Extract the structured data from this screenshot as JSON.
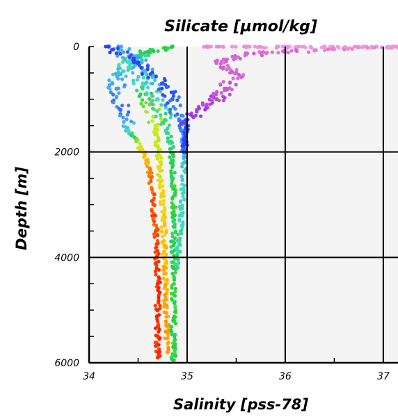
{
  "chart_data": {
    "type": "scatter",
    "title": "Silicate [µmol/kg]",
    "xlabel": "Salinity [pss-78]",
    "ylabel": "Depth [m]",
    "xlim": [
      34,
      37.15
    ],
    "ylim": [
      6000,
      0
    ],
    "x_ticks": [
      "34",
      "35",
      "36",
      "37"
    ],
    "y_ticks": [
      "0",
      "2000",
      "4000",
      "6000"
    ],
    "grid": true,
    "color_variable": "Silicate",
    "color_ramp": [
      "#ff1a00",
      "#ff8000",
      "#ffd000",
      "#b8f020",
      "#20d040",
      "#40e0c0",
      "#40a0ff",
      "#2040ff",
      "#b040e0",
      "#e070d0",
      "#f0a0e0"
    ],
    "series": [
      {
        "depth": [
          0,
          100,
          200,
          300,
          500,
          800,
          1200,
          1600,
          2000,
          2400,
          3000,
          3500,
          4000,
          4500,
          5000,
          5500,
          5900
        ],
        "salinity": [
          34.85,
          34.6,
          34.5,
          34.4,
          34.3,
          34.28,
          34.32,
          34.4,
          34.55,
          34.62,
          34.66,
          34.68,
          34.69,
          34.7,
          34.7,
          34.7,
          34.7
        ],
        "silicate_level": [
          0.4,
          0.4,
          0.45,
          0.5,
          0.55,
          0.6,
          0.65,
          0.5,
          0.2,
          0.1,
          0.05,
          0.05,
          0.03,
          0.02,
          0.02,
          0.02,
          0.02
        ]
      },
      {
        "depth": [
          0,
          300,
          700,
          1100,
          1500,
          1900,
          2300,
          2800,
          3300,
          3800,
          4300,
          4800,
          5300,
          5800
        ],
        "salinity": [
          34.3,
          34.45,
          34.55,
          34.62,
          34.68,
          34.7,
          34.72,
          34.74,
          34.76,
          34.77,
          34.78,
          34.78,
          34.79,
          34.8
        ],
        "silicate_level": [
          0.6,
          0.55,
          0.5,
          0.35,
          0.3,
          0.28,
          0.25,
          0.22,
          0.2,
          0.18,
          0.16,
          0.15,
          0.14,
          0.14
        ]
      },
      {
        "depth": [
          200,
          600,
          1000,
          1400,
          1800,
          2200,
          2700,
          3200,
          3700,
          4200,
          4700,
          5200,
          5700,
          5950
        ],
        "salinity": [
          34.5,
          34.6,
          34.7,
          34.78,
          34.83,
          34.85,
          34.86,
          34.86,
          34.86,
          34.86,
          34.86,
          34.86,
          34.86,
          34.86
        ],
        "silicate_level": [
          0.6,
          0.55,
          0.5,
          0.45,
          0.45,
          0.42,
          0.4,
          0.4,
          0.42,
          0.4,
          0.38,
          0.4,
          0.4,
          0.4
        ]
      },
      {
        "depth": [
          0,
          300,
          700,
          1000,
          1400,
          1800,
          2200,
          2700,
          3200,
          3700,
          4200
        ],
        "salinity": [
          34.2,
          34.5,
          34.75,
          34.85,
          34.92,
          34.96,
          34.97,
          34.96,
          34.94,
          34.92,
          34.9
        ],
        "silicate_level": [
          0.7,
          0.7,
          0.68,
          0.66,
          0.64,
          0.6,
          0.55,
          0.5,
          0.5,
          0.48,
          0.45
        ]
      },
      {
        "depth": [
          0,
          0,
          0,
          0,
          0,
          0,
          0,
          50,
          100,
          150,
          300,
          500,
          800,
          1000,
          1200,
          1500,
          1800,
          2000
        ],
        "salinity": [
          35.2,
          35.6,
          36.0,
          36.4,
          36.8,
          37.1,
          37.15,
          36.5,
          36.0,
          35.6,
          35.3,
          35.5,
          35.4,
          35.3,
          35.1,
          35.0,
          34.98,
          34.97
        ],
        "silicate_level": [
          0.95,
          0.97,
          0.98,
          0.98,
          0.98,
          0.98,
          0.98,
          0.95,
          0.9,
          0.88,
          0.88,
          0.88,
          0.85,
          0.82,
          0.8,
          0.72,
          0.7,
          0.68
        ]
      }
    ]
  }
}
